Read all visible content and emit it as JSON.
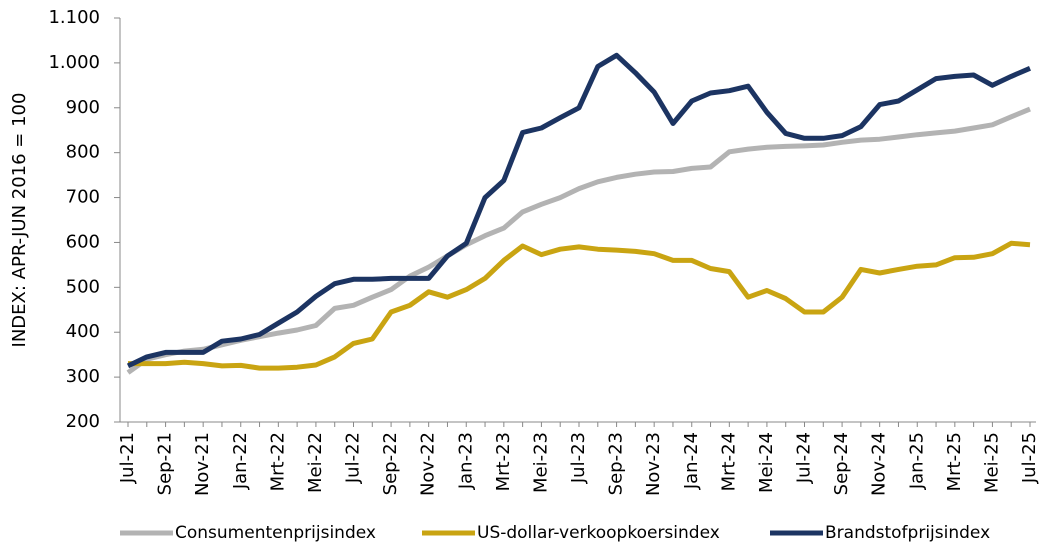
{
  "chart_data": {
    "type": "line",
    "y_label": "INDEX: APR-JUN 2016 = 100",
    "categories": [
      "Jul-21",
      null,
      "Sep-21",
      null,
      "Nov-21",
      null,
      "Jan-22",
      null,
      "Mrt-22",
      null,
      "Mei-22",
      null,
      "Jul-22",
      null,
      "Sep-22",
      null,
      "Nov-22",
      null,
      "Jan-23",
      null,
      "Mrt-23",
      null,
      "Mei-23",
      null,
      "Jul-23",
      null,
      "Sep-23",
      null,
      "Nov-23",
      null,
      "Jan-24",
      null,
      "Mrt-24",
      null,
      "Mei-24",
      null,
      "Jul-24",
      null,
      "Sep-24",
      null,
      "Nov-24",
      null,
      "Jan-25",
      null,
      "Mrt-25",
      null,
      "Mei-25",
      null,
      "Jul-25"
    ],
    "series": [
      {
        "name": "Consumentenprijsindex",
        "color": "#b3b3b3",
        "values": [
          310,
          340,
          350,
          358,
          362,
          372,
          382,
          390,
          398,
          405,
          415,
          453,
          460,
          478,
          495,
          525,
          545,
          570,
          595,
          615,
          632,
          668,
          685,
          700,
          720,
          735,
          745,
          752,
          757,
          758,
          765,
          768,
          802,
          808,
          812,
          814,
          815,
          817,
          823,
          828,
          830,
          835,
          840,
          844,
          848,
          855,
          862,
          880,
          897
        ]
      },
      {
        "name": "US-dollar-verkoopkoersindex",
        "color": "#c9a412",
        "values": [
          330,
          330,
          330,
          333,
          330,
          325,
          326,
          320,
          320,
          322,
          327,
          345,
          375,
          385,
          445,
          460,
          490,
          478,
          495,
          520,
          560,
          592,
          573,
          585,
          590,
          585,
          583,
          580,
          575,
          560,
          560,
          542,
          535,
          478,
          493,
          475,
          445,
          445,
          478,
          540,
          532,
          540,
          547,
          550,
          566,
          567,
          575,
          598,
          595
        ]
      },
      {
        "name": "Brandstofprijsindex",
        "color": "#1c3462",
        "values": [
          325,
          345,
          355,
          355,
          355,
          380,
          385,
          395,
          420,
          445,
          480,
          508,
          518,
          518,
          520,
          520,
          520,
          570,
          598,
          700,
          738,
          845,
          855,
          878,
          900,
          992,
          1017,
          978,
          935,
          865,
          915,
          933,
          938,
          948,
          890,
          843,
          832,
          832,
          838,
          858,
          907,
          915,
          940,
          965,
          970,
          973,
          950,
          970,
          988
        ]
      }
    ],
    "ylim": [
      200,
      1100
    ],
    "yticks": [
      200,
      300,
      400,
      500,
      600,
      700,
      800,
      900,
      1000,
      {
        "value": 1000,
        "label": "1.000"
      },
      {
        "value": 1100,
        "label": "1.100"
      }
    ],
    "grid": false,
    "legend": "bottom"
  }
}
